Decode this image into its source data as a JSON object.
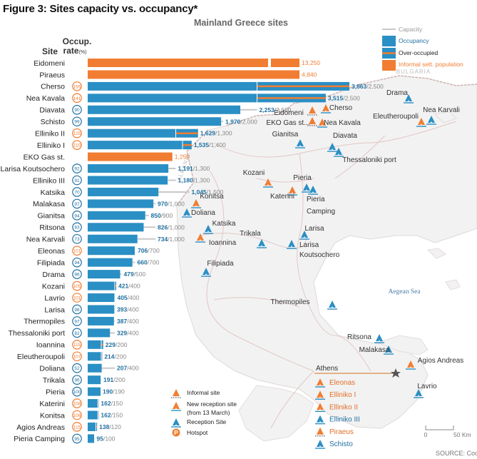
{
  "figure_title": "Figure 3: Sites capacity vs. occupancy*",
  "map_title": "Mainland Greece sites",
  "headers": {
    "site": "Site",
    "occupancy_rate": "Occup.",
    "occupancy_rate_sub": "rate",
    "occupancy_rate_unit": "(%)"
  },
  "colors": {
    "occupancy": "#2a8fc4",
    "informal": "#f07d32",
    "capacity": "#c8c8c8",
    "over": "#f07d32",
    "rate_blue": "#1f6fa0",
    "rate_orange": "#f07d32"
  },
  "chart_data": {
    "type": "bar",
    "sites": [
      {
        "name": "Eidomeni",
        "informal": true,
        "population": 13250,
        "label": "13,250",
        "break": true
      },
      {
        "name": "Piraeus",
        "informal": true,
        "population": 4840,
        "label": "4,840"
      },
      {
        "name": "Cherso",
        "rate": "155",
        "rate_over": true,
        "occupancy": 3863,
        "capacity": 2500,
        "label": "3,863",
        "cap_label": "/2,500"
      },
      {
        "name": "Nea Kavala",
        "rate": "141",
        "rate_over": true,
        "occupancy": 3515,
        "capacity": 2500,
        "label": "3,515",
        "cap_label": "/2,500"
      },
      {
        "name": "Diavata",
        "rate": "90",
        "rate_over": false,
        "occupancy": 2253,
        "capacity": 2500,
        "label": "2,253",
        "cap_label": "/2,500"
      },
      {
        "name": "Schisto",
        "rate": "99",
        "rate_over": false,
        "occupancy": 1970,
        "capacity": 2000,
        "label": "1,970",
        "cap_label": "/2,000"
      },
      {
        "name": "Elliniko II",
        "rate": "125",
        "rate_over": true,
        "occupancy": 1629,
        "capacity": 1300,
        "label": "1,629",
        "cap_label": "/1,300"
      },
      {
        "name": "Elliniko I",
        "rate": "110",
        "rate_over": true,
        "occupancy": 1535,
        "capacity": 1400,
        "label": "1,535",
        "cap_label": "/1,400"
      },
      {
        "name": "EKO Gas st.",
        "informal": true,
        "population": 1250,
        "label": "1,250"
      },
      {
        "name": "Larisa Koutsochero",
        "rate": "92",
        "rate_over": false,
        "occupancy": 1191,
        "capacity": 1300,
        "label": "1,191",
        "cap_label": "/1,300"
      },
      {
        "name": "Elliniko III",
        "rate": "91",
        "rate_over": false,
        "occupancy": 1180,
        "capacity": 1300,
        "label": "1,180",
        "cap_label": "/1,300"
      },
      {
        "name": "Katsika",
        "rate": "70",
        "rate_over": false,
        "occupancy": 1045,
        "capacity": 1500,
        "label": "1,045",
        "cap_label": "/1,500"
      },
      {
        "name": "Malakasa",
        "rate": "97",
        "rate_over": false,
        "occupancy": 970,
        "capacity": 1000,
        "label": "970",
        "cap_label": "/1,000"
      },
      {
        "name": "Gianitsa",
        "rate": "94",
        "rate_over": false,
        "occupancy": 850,
        "capacity": 900,
        "label": "850",
        "cap_label": "/900"
      },
      {
        "name": "Ritsona",
        "rate": "83",
        "rate_over": false,
        "occupancy": 826,
        "capacity": 1000,
        "label": "826",
        "cap_label": "/1,000"
      },
      {
        "name": "Nea Karvali",
        "rate": "73",
        "rate_over": false,
        "occupancy": 734,
        "capacity": 1000,
        "label": "734",
        "cap_label": "/1,000"
      },
      {
        "name": "Eleonas",
        "rate": "101",
        "rate_over": true,
        "occupancy": 706,
        "capacity": 700,
        "label": "706",
        "cap_label": "/700"
      },
      {
        "name": "Filipiada",
        "rate": "94",
        "rate_over": false,
        "occupancy": 660,
        "capacity": 700,
        "label": "660",
        "cap_label": "/700"
      },
      {
        "name": "Drama",
        "rate": "96",
        "rate_over": false,
        "occupancy": 479,
        "capacity": 500,
        "label": "479",
        "cap_label": "/500"
      },
      {
        "name": "Kozani",
        "rate": "105",
        "rate_over": true,
        "occupancy": 421,
        "capacity": 400,
        "label": "421",
        "cap_label": "/400"
      },
      {
        "name": "Lavrio",
        "rate": "101",
        "rate_over": true,
        "occupancy": 405,
        "capacity": 400,
        "label": "405",
        "cap_label": "/400"
      },
      {
        "name": "Larisa",
        "rate": "98",
        "rate_over": false,
        "occupancy": 393,
        "capacity": 400,
        "label": "393",
        "cap_label": "/400"
      },
      {
        "name": "Thermopiles",
        "rate": "97",
        "rate_over": false,
        "occupancy": 387,
        "capacity": 400,
        "label": "387",
        "cap_label": "/400"
      },
      {
        "name": "Thessaloniki port",
        "rate": "82",
        "rate_over": false,
        "occupancy": 329,
        "capacity": 400,
        "label": "329",
        "cap_label": "/400"
      },
      {
        "name": "Ioannina",
        "rate": "115",
        "rate_over": true,
        "occupancy": 229,
        "capacity": 200,
        "label": "229",
        "cap_label": "/200"
      },
      {
        "name": "Eleutheroupoli",
        "rate": "107",
        "rate_over": true,
        "occupancy": 214,
        "capacity": 200,
        "label": "214",
        "cap_label": "/200"
      },
      {
        "name": "Doliana",
        "rate": "52",
        "rate_over": false,
        "occupancy": 207,
        "capacity": 400,
        "label": "207",
        "cap_label": "/400"
      },
      {
        "name": "Trikala",
        "rate": "96",
        "rate_over": false,
        "occupancy": 191,
        "capacity": 200,
        "label": "191",
        "cap_label": "/200"
      },
      {
        "name": "Pieria",
        "rate": "100",
        "rate_over": false,
        "occupancy": 190,
        "capacity": 190,
        "label": "190",
        "cap_label": "/190"
      },
      {
        "name": "Katerini",
        "rate": "108",
        "rate_over": true,
        "occupancy": 162,
        "capacity": 150,
        "label": "162",
        "cap_label": "/150"
      },
      {
        "name": "Konitsa",
        "rate": "108",
        "rate_over": true,
        "occupancy": 162,
        "capacity": 150,
        "label": "162",
        "cap_label": "/150"
      },
      {
        "name": "Agios Andreas",
        "rate": "115",
        "rate_over": true,
        "occupancy": 138,
        "capacity": 120,
        "label": "138",
        "cap_label": "/120"
      },
      {
        "name": "Pieria Camping",
        "rate": "95",
        "rate_over": false,
        "occupancy": 95,
        "capacity": 100,
        "label": "95",
        "cap_label": "/100"
      }
    ]
  },
  "chart_legend": {
    "capacity": "Capacity",
    "occupancy": "Occupancy",
    "over": "Over-occupied",
    "informal": "Informal sett. population"
  },
  "map": {
    "countries": [
      "BULGARIA",
      "FYROM",
      "ALBANIA"
    ],
    "sea": "Aegean Sea",
    "places": [
      {
        "name": "Drama",
        "type": "reception"
      },
      {
        "name": "Eleutheroupoli",
        "type": "new"
      },
      {
        "name": "Nea Karvali",
        "type": "reception"
      },
      {
        "name": "Eidomeni",
        "type": "informal"
      },
      {
        "name": "Cherso",
        "type": "new"
      },
      {
        "name": "EKO Gas st...",
        "type": "informal"
      },
      {
        "name": "Nea Kavala",
        "type": "new"
      },
      {
        "name": "Gianitsa",
        "type": "reception"
      },
      {
        "name": "Diavata",
        "type": "reception"
      },
      {
        "name": "Thessaloniki port",
        "type": "reception"
      },
      {
        "name": "Kozani",
        "type": "new"
      },
      {
        "name": "Pieria",
        "type": "reception"
      },
      {
        "name": "Katerini",
        "type": "new"
      },
      {
        "name": "Pieria Camping",
        "type": "reception"
      },
      {
        "name": "Konitsa",
        "type": "new"
      },
      {
        "name": "Doliana",
        "type": "reception"
      },
      {
        "name": "Katsika",
        "type": "reception"
      },
      {
        "name": "Ioannina",
        "type": "new"
      },
      {
        "name": "Trikala",
        "type": "reception"
      },
      {
        "name": "Larisa",
        "type": "reception"
      },
      {
        "name": "Larisa Koutsochero",
        "type": "reception"
      },
      {
        "name": "Filipiada",
        "type": "reception"
      },
      {
        "name": "Thermopiles",
        "type": "reception"
      },
      {
        "name": "Ritsona",
        "type": "reception"
      },
      {
        "name": "Malakasa",
        "type": "reception"
      },
      {
        "name": "Agios Andreas",
        "type": "new"
      },
      {
        "name": "Lavrio",
        "type": "reception"
      }
    ],
    "pieria_camping_line1": "Pieria",
    "pieria_camping_line2": "Camping",
    "larisa_k_line1": "Larisa",
    "larisa_k_line2": "Koutsochero",
    "athens": "Athens",
    "athens_sites": [
      {
        "name": "Eleonas",
        "type": "new"
      },
      {
        "name": "Elliniko I",
        "type": "new"
      },
      {
        "name": "Elliniko II",
        "type": "new"
      },
      {
        "name": "Elliniko III",
        "type": "reception"
      },
      {
        "name": "Piraeus",
        "type": "informal"
      },
      {
        "name": "Schisto",
        "type": "reception"
      }
    ],
    "legend": {
      "informal": "Informal site",
      "new_line1": "New reception site",
      "new_line2": "(from 13 March)",
      "reception": "Reception Site",
      "hotspot": "Hotspot",
      "hotspot_icon": "P"
    },
    "scale_start": "0",
    "scale_end": "50 Km",
    "source": "SOURCE: Coo"
  }
}
